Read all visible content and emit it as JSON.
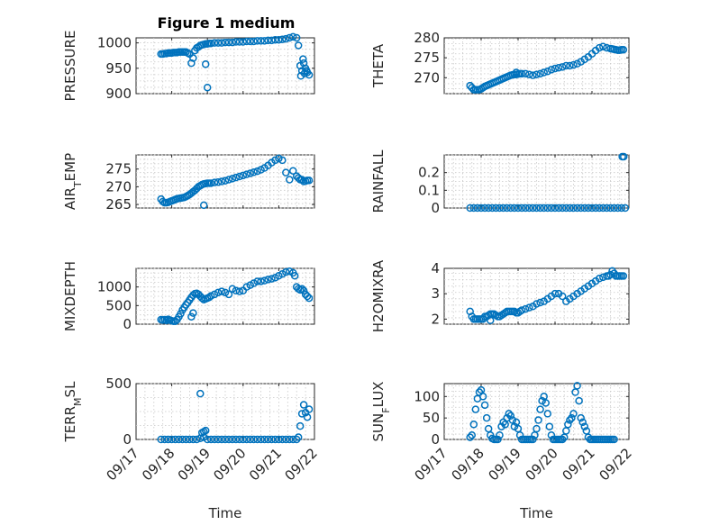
{
  "title": "Figure 1 medium",
  "xlabel": "Time",
  "x_ticks": [
    "09/17",
    "09/18",
    "09/19",
    "09/20",
    "09/21",
    "09/22"
  ],
  "x_tick_values": [
    0,
    1,
    2,
    3,
    4,
    5
  ],
  "marker_color": "#0072BD",
  "chart_data": [
    {
      "type": "scatter",
      "ylabel": "PRESSURE",
      "ylim": [
        900,
        1010
      ],
      "yticks": [
        900,
        950,
        1000
      ],
      "ytick_labels": [
        "900",
        "950",
        "1000"
      ],
      "grid": true,
      "x": [
        0.7,
        0.75,
        0.8,
        0.85,
        0.9,
        0.95,
        1.0,
        1.05,
        1.1,
        1.15,
        1.2,
        1.25,
        1.3,
        1.35,
        1.4,
        1.45,
        1.5,
        1.55,
        1.6,
        1.65,
        1.7,
        1.75,
        1.8,
        1.85,
        1.9,
        1.95,
        2.0,
        2.05,
        2.1,
        2.2,
        2.3,
        2.4,
        2.5,
        2.6,
        2.7,
        2.8,
        2.9,
        3.0,
        3.1,
        3.2,
        3.3,
        3.4,
        3.5,
        3.6,
        3.7,
        3.8,
        3.9,
        4.0,
        4.1,
        4.2,
        4.3,
        4.4,
        4.5,
        4.55,
        4.6,
        4.62,
        4.65,
        4.68,
        4.7,
        4.72,
        4.75,
        4.78,
        4.8,
        4.85,
        1.95,
        2.0
      ],
      "y": [
        978,
        978,
        979,
        979,
        980,
        980,
        980,
        981,
        981,
        981,
        982,
        982,
        982,
        982,
        982,
        980,
        978,
        960,
        970,
        985,
        990,
        992,
        995,
        996,
        997,
        998,
        998,
        999,
        999,
        1000,
        1000,
        1000,
        1001,
        1001,
        1001,
        1002,
        1002,
        1002,
        1003,
        1003,
        1003,
        1004,
        1004,
        1004,
        1005,
        1005,
        1006,
        1006,
        1007,
        1008,
        1010,
        1012,
        1010,
        995,
        955,
        935,
        945,
        968,
        960,
        940,
        950,
        945,
        942,
        937,
        958,
        912
      ]
    },
    {
      "type": "scatter",
      "ylabel": "THETA",
      "ylim": [
        266,
        280
      ],
      "yticks": [
        270,
        275,
        280
      ],
      "ytick_labels": [
        "270",
        "275",
        "280"
      ],
      "grid": true,
      "x": [
        0.7,
        0.75,
        0.8,
        0.85,
        0.9,
        0.95,
        1.0,
        1.05,
        1.1,
        1.15,
        1.2,
        1.25,
        1.3,
        1.35,
        1.4,
        1.45,
        1.5,
        1.55,
        1.6,
        1.65,
        1.7,
        1.75,
        1.8,
        1.85,
        1.9,
        1.95,
        2.0,
        2.05,
        2.1,
        2.2,
        2.3,
        2.4,
        2.5,
        2.6,
        2.7,
        2.8,
        2.9,
        3.0,
        3.1,
        3.2,
        3.3,
        3.4,
        3.5,
        3.6,
        3.7,
        3.8,
        3.9,
        4.0,
        4.1,
        4.2,
        4.3,
        4.4,
        4.5,
        4.55,
        4.6,
        4.65,
        4.7,
        4.75,
        4.8,
        4.85,
        1.95
      ],
      "y": [
        268,
        267.5,
        267,
        267,
        267,
        267,
        267.2,
        267.5,
        267.8,
        268,
        268.2,
        268.4,
        268.6,
        268.8,
        269,
        269.2,
        269.4,
        269.6,
        269.8,
        270,
        270.2,
        270.4,
        270.6,
        270.7,
        270.8,
        270.8,
        270.9,
        271,
        271,
        271,
        270.8,
        270.6,
        270.8,
        271,
        271.3,
        271.6,
        272,
        272.3,
        272.5,
        272.7,
        273,
        273,
        273.2,
        273.5,
        274,
        274.6,
        275.2,
        276,
        276.8,
        277.5,
        277.8,
        277.5,
        277.3,
        277.2,
        277.1,
        277,
        276.9,
        276.9,
        277,
        277,
        271.3
      ]
    },
    {
      "type": "scatter",
      "ylabel": "AIR_TEMP",
      "ylim": [
        264,
        279
      ],
      "yticks": [
        265,
        270,
        275
      ],
      "ytick_labels": [
        "265",
        "270",
        "275"
      ],
      "grid": true,
      "x": [
        0.7,
        0.75,
        0.8,
        0.85,
        0.9,
        0.95,
        1.0,
        1.05,
        1.1,
        1.15,
        1.2,
        1.25,
        1.3,
        1.35,
        1.4,
        1.45,
        1.5,
        1.55,
        1.6,
        1.65,
        1.7,
        1.75,
        1.8,
        1.85,
        1.9,
        1.95,
        2.0,
        2.05,
        2.1,
        2.2,
        2.3,
        2.4,
        2.5,
        2.6,
        2.7,
        2.8,
        2.9,
        3.0,
        3.1,
        3.2,
        3.3,
        3.4,
        3.5,
        3.6,
        3.7,
        3.8,
        3.9,
        4.0,
        4.1,
        4.2,
        4.3,
        4.4,
        4.5,
        4.55,
        4.6,
        4.65,
        4.7,
        4.75,
        4.8,
        4.85,
        1.9
      ],
      "y": [
        266.5,
        265.8,
        265.5,
        265.5,
        265.6,
        265.8,
        266,
        266.2,
        266.4,
        266.6,
        266.7,
        266.8,
        266.9,
        267,
        267.2,
        267.5,
        267.8,
        268.2,
        268.6,
        269,
        269.5,
        270,
        270.3,
        270.6,
        270.8,
        270.9,
        271,
        271,
        271,
        271.2,
        271.3,
        271.5,
        271.7,
        272,
        272.3,
        272.6,
        272.9,
        273.2,
        273.5,
        273.8,
        274.1,
        274.4,
        274.8,
        275.3,
        276,
        276.8,
        277.5,
        278,
        277.5,
        274,
        272,
        274.5,
        273,
        272.5,
        272,
        272,
        271.5,
        271.6,
        271.8,
        271.8,
        264.8
      ]
    },
    {
      "type": "scatter",
      "ylabel": "RAINFALL",
      "ylim": [
        0,
        0.3
      ],
      "yticks": [
        0,
        0.1,
        0.2
      ],
      "ytick_labels": [
        "0",
        "0.1",
        "0.2"
      ],
      "grid": true,
      "x": [
        0.7,
        0.8,
        0.9,
        1.0,
        1.1,
        1.2,
        1.3,
        1.4,
        1.5,
        1.6,
        1.7,
        1.8,
        1.9,
        2.0,
        2.1,
        2.2,
        2.3,
        2.4,
        2.5,
        2.6,
        2.7,
        2.8,
        2.9,
        3.0,
        3.1,
        3.2,
        3.3,
        3.4,
        3.5,
        3.6,
        3.7,
        3.8,
        3.9,
        4.0,
        4.1,
        4.2,
        4.3,
        4.4,
        4.5,
        4.6,
        4.7,
        4.8,
        4.9,
        4.82,
        4.86
      ],
      "y": [
        0,
        0,
        0,
        0,
        0,
        0,
        0,
        0,
        0,
        0,
        0,
        0,
        0,
        0,
        0,
        0,
        0,
        0,
        0,
        0,
        0,
        0,
        0,
        0,
        0,
        0,
        0,
        0,
        0,
        0,
        0,
        0,
        0,
        0,
        0,
        0,
        0,
        0,
        0,
        0,
        0,
        0,
        0,
        0.29,
        0.29
      ]
    },
    {
      "type": "scatter",
      "ylabel": "MIXDEPTH",
      "ylim": [
        0,
        1500
      ],
      "yticks": [
        0,
        500,
        1000
      ],
      "ytick_labels": [
        "0",
        "500",
        "1000"
      ],
      "grid": true,
      "x": [
        0.7,
        0.75,
        0.8,
        0.85,
        0.9,
        0.95,
        1.0,
        1.05,
        1.1,
        1.15,
        1.2,
        1.25,
        1.3,
        1.35,
        1.4,
        1.45,
        1.5,
        1.55,
        1.6,
        1.65,
        1.7,
        1.75,
        1.8,
        1.85,
        1.9,
        1.95,
        2.0,
        2.05,
        2.1,
        2.2,
        2.3,
        2.4,
        2.5,
        2.6,
        2.7,
        2.8,
        2.9,
        3.0,
        3.1,
        3.2,
        3.3,
        3.4,
        3.5,
        3.6,
        3.7,
        3.8,
        3.9,
        4.0,
        4.1,
        4.2,
        4.3,
        4.4,
        4.45,
        4.5,
        4.55,
        4.6,
        4.65,
        4.7,
        4.75,
        4.8,
        4.85,
        1.55,
        1.6
      ],
      "y": [
        120,
        110,
        120,
        100,
        130,
        110,
        90,
        80,
        80,
        120,
        200,
        280,
        380,
        450,
        520,
        580,
        650,
        720,
        780,
        820,
        830,
        800,
        750,
        700,
        660,
        680,
        700,
        720,
        760,
        800,
        850,
        880,
        850,
        800,
        950,
        900,
        880,
        900,
        1000,
        1050,
        1100,
        1150,
        1150,
        1170,
        1200,
        1220,
        1250,
        1300,
        1350,
        1400,
        1420,
        1380,
        1300,
        1000,
        950,
        920,
        950,
        900,
        800,
        750,
        700,
        200,
        300
      ]
    },
    {
      "type": "scatter",
      "ylabel": "H2OMIXRA",
      "ylim": [
        1.8,
        4.0
      ],
      "yticks": [
        2,
        3,
        4
      ],
      "ytick_labels": [
        "2",
        "3",
        "4"
      ],
      "grid": true,
      "x": [
        0.7,
        0.75,
        0.8,
        0.85,
        0.9,
        0.95,
        1.0,
        1.05,
        1.1,
        1.15,
        1.2,
        1.25,
        1.3,
        1.35,
        1.4,
        1.45,
        1.5,
        1.55,
        1.6,
        1.65,
        1.7,
        1.75,
        1.8,
        1.85,
        1.9,
        1.95,
        2.0,
        2.05,
        2.1,
        2.2,
        2.3,
        2.4,
        2.5,
        2.6,
        2.7,
        2.8,
        2.9,
        3.0,
        3.1,
        3.2,
        3.3,
        3.4,
        3.5,
        3.6,
        3.7,
        3.8,
        3.9,
        4.0,
        4.1,
        4.2,
        4.3,
        4.4,
        4.45,
        4.5,
        4.55,
        4.6,
        4.65,
        4.7,
        4.75,
        4.8,
        4.85,
        1.25
      ],
      "y": [
        2.3,
        2.1,
        2.0,
        2.0,
        2.0,
        2.0,
        2.0,
        2.0,
        2.1,
        2.1,
        2.15,
        2.2,
        2.2,
        2.2,
        2.15,
        2.1,
        2.1,
        2.15,
        2.2,
        2.25,
        2.3,
        2.3,
        2.3,
        2.3,
        2.3,
        2.25,
        2.25,
        2.3,
        2.35,
        2.4,
        2.45,
        2.5,
        2.6,
        2.65,
        2.7,
        2.8,
        2.9,
        3.0,
        3.0,
        2.9,
        2.7,
        2.8,
        2.9,
        3.0,
        3.1,
        3.2,
        3.3,
        3.4,
        3.5,
        3.6,
        3.65,
        3.7,
        3.7,
        3.75,
        3.9,
        3.8,
        3.7,
        3.7,
        3.7,
        3.7,
        3.7,
        1.95
      ]
    },
    {
      "type": "scatter",
      "ylabel": "TERR_MSL",
      "ylim": [
        0,
        500
      ],
      "yticks": [
        0,
        500
      ],
      "ytick_labels": [
        "0",
        "500"
      ],
      "grid": true,
      "x": [
        0.7,
        0.8,
        0.9,
        1.0,
        1.1,
        1.2,
        1.3,
        1.4,
        1.5,
        1.6,
        1.7,
        1.8,
        1.9,
        2.0,
        2.1,
        2.2,
        2.3,
        2.4,
        2.5,
        2.6,
        2.7,
        2.8,
        2.9,
        3.0,
        3.1,
        3.2,
        3.3,
        3.4,
        3.5,
        3.6,
        3.7,
        3.8,
        3.9,
        4.0,
        4.1,
        4.2,
        4.3,
        4.4,
        4.5,
        4.55,
        4.6,
        4.65,
        4.7,
        4.75,
        4.8,
        4.85,
        1.85,
        1.9,
        1.95,
        1.8
      ],
      "y": [
        0,
        0,
        0,
        0,
        0,
        0,
        0,
        0,
        0,
        0,
        0,
        10,
        20,
        0,
        0,
        0,
        0,
        0,
        0,
        0,
        0,
        0,
        0,
        0,
        0,
        0,
        0,
        0,
        0,
        0,
        0,
        0,
        0,
        0,
        0,
        0,
        0,
        0,
        0,
        20,
        120,
        230,
        310,
        240,
        200,
        270,
        60,
        70,
        80,
        410
      ]
    },
    {
      "type": "scatter",
      "ylabel": "SUN_FLUX",
      "ylim": [
        0,
        130
      ],
      "yticks": [
        0,
        50,
        100
      ],
      "ytick_labels": [
        "0",
        "50",
        "100"
      ],
      "grid": true,
      "x": [
        0.7,
        0.75,
        0.8,
        0.85,
        0.9,
        0.95,
        1.0,
        1.05,
        1.1,
        1.15,
        1.2,
        1.25,
        1.3,
        1.35,
        1.4,
        1.45,
        1.5,
        1.55,
        1.6,
        1.65,
        1.7,
        1.75,
        1.8,
        1.85,
        1.9,
        1.95,
        2.0,
        2.05,
        2.1,
        2.15,
        2.2,
        2.25,
        2.3,
        2.35,
        2.4,
        2.45,
        2.5,
        2.55,
        2.6,
        2.65,
        2.7,
        2.75,
        2.8,
        2.85,
        2.9,
        2.95,
        3.0,
        3.05,
        3.1,
        3.15,
        3.2,
        3.25,
        3.3,
        3.35,
        3.4,
        3.45,
        3.5,
        3.55,
        3.6,
        3.65,
        3.7,
        3.75,
        3.8,
        3.85,
        3.9,
        3.95,
        4.0,
        4.05,
        4.1,
        4.15,
        4.2,
        4.25,
        4.3,
        4.35,
        4.4,
        4.45,
        4.5,
        4.55,
        4.6
      ],
      "y": [
        5,
        10,
        35,
        70,
        95,
        110,
        115,
        100,
        80,
        50,
        25,
        10,
        2,
        0,
        0,
        0,
        10,
        30,
        40,
        35,
        50,
        60,
        55,
        45,
        30,
        40,
        25,
        10,
        0,
        0,
        0,
        0,
        0,
        0,
        0,
        10,
        25,
        45,
        70,
        90,
        100,
        85,
        60,
        30,
        10,
        0,
        0,
        0,
        0,
        0,
        0,
        5,
        20,
        35,
        45,
        50,
        60,
        110,
        125,
        90,
        50,
        40,
        30,
        20,
        5,
        0,
        0,
        0,
        0,
        0,
        0,
        0,
        0,
        0,
        0,
        0,
        0,
        0,
        0
      ]
    }
  ]
}
